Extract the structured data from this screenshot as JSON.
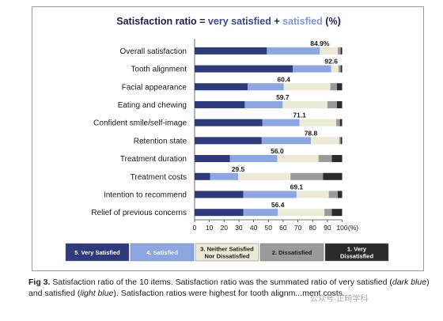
{
  "chart_data": {
    "type": "bar",
    "stacked": true,
    "orientation": "horizontal",
    "title_parts": [
      {
        "text": "Satisfaction ratio = ",
        "color": "#1e1e4a"
      },
      {
        "text": "very satisfied",
        "color": "#3a4a8c"
      },
      {
        "text": " + ",
        "color": "#1e1e4a"
      },
      {
        "text": "satisfied",
        "color": "#7f97d6"
      },
      {
        "text": " (%)",
        "color": "#1e1e4a"
      }
    ],
    "categories": [
      "Overall satisfaction",
      "Tooth alignment",
      "Facial appearance",
      "Eating and chewing",
      "Confident smile/self-image",
      "Retention state",
      "Treatment duration",
      "Treatment costs",
      "Intention to recommend",
      "Relief of previous concerns"
    ],
    "series": [
      {
        "name": "5. Very Satisfied",
        "color": "#2f3a7a",
        "values": [
          49.0,
          66.5,
          36.0,
          34.0,
          46.0,
          45.5,
          24.0,
          10.5,
          33.0,
          33.0
        ]
      },
      {
        "name": "4. Satisfied",
        "color": "#8ea6e0",
        "values": [
          35.9,
          26.1,
          24.4,
          25.7,
          25.1,
          33.3,
          32.0,
          19.0,
          36.1,
          23.4
        ]
      },
      {
        "name": "3. Neither Satisfied Nor Dissatisfied",
        "color": "#ece9d6",
        "values": [
          12.1,
          4.9,
          31.6,
          30.3,
          24.9,
          19.2,
          28.0,
          35.5,
          21.9,
          31.6
        ]
      },
      {
        "name": "2. Dissatisfied",
        "color": "#9a9a9a",
        "values": [
          2.0,
          1.5,
          4.5,
          6.5,
          2.5,
          1.0,
          9.0,
          22.0,
          6.0,
          5.0
        ]
      },
      {
        "name": "1. Very Dissatisfied",
        "color": "#2b2b2b",
        "values": [
          1.0,
          1.0,
          3.5,
          3.5,
          1.5,
          1.0,
          7.0,
          13.0,
          3.0,
          7.0
        ]
      }
    ],
    "data_labels": [
      "84.9%",
      "92.6",
      "60.4",
      "59.7",
      "71.1",
      "78.8",
      "56.0",
      "29.5",
      "69.1",
      "56.4"
    ],
    "x_ticks": [
      0,
      10,
      20,
      30,
      40,
      50,
      60,
      70,
      80,
      90,
      100
    ],
    "x_unit": "(%)",
    "xlim": [
      0,
      100
    ],
    "legend": {
      "position": "bottom"
    },
    "grid": false
  },
  "caption": {
    "label": "Fig 3.",
    "parts": [
      {
        "t": "  Satisfaction ratio of the 10 items. Satisfaction ratio was the summated ratio of very satisfied (",
        "i": false
      },
      {
        "t": "dark blue",
        "i": true
      },
      {
        "t": ") and satisfied (",
        "i": false
      },
      {
        "t": "light blue",
        "i": true
      },
      {
        "t": "). Satisfaction ratios were highest for tooth alignm...",
        "i": false
      },
      {
        "t": "ment costs.",
        "i": false
      }
    ]
  },
  "watermark": "公众号·正畸学科"
}
